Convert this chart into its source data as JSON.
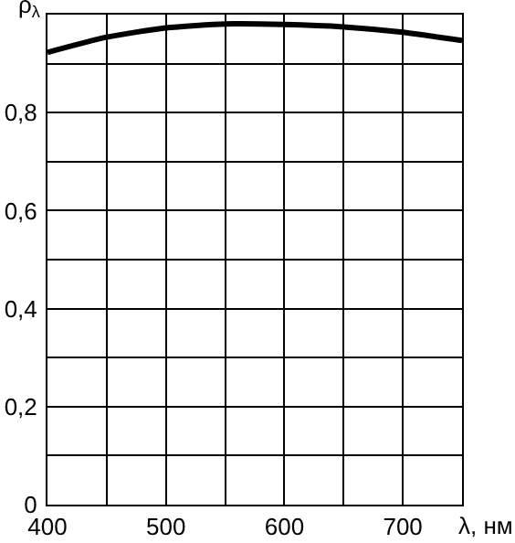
{
  "chart_data": {
    "type": "line",
    "xlabel": "λ, нм",
    "ylabel": "ρ$_{λ}$",
    "x": [
      400,
      450,
      500,
      550,
      600,
      650,
      700,
      750
    ],
    "series": [
      {
        "color": "#000000",
        "values": [
          0.923,
          0.954,
          0.973,
          0.981,
          0.98,
          0.975,
          0.964,
          0.947
        ]
      }
    ],
    "xlim": [
      400,
      750
    ],
    "xticks": [
      400,
      {
        "value": 450,
        "label": null
      },
      500,
      {
        "value": 550,
        "label": null
      },
      600,
      {
        "value": 650,
        "label": null
      },
      700,
      {
        "value": 750,
        "label": null
      }
    ],
    "ylim": [
      0,
      1
    ],
    "yticks": [
      0,
      {
        "value": 0.1,
        "label": null
      },
      {
        "value": 0.2,
        "label": "0,2"
      },
      {
        "value": 0.3,
        "label": null
      },
      {
        "value": 0.4,
        "label": "0,4"
      },
      {
        "value": 0.5,
        "label": null
      },
      {
        "value": 0.6,
        "label": "0,6"
      },
      {
        "value": 0.7,
        "label": null
      },
      {
        "value": 0.8,
        "label": "0,8"
      },
      {
        "value": 0.9,
        "label": null
      },
      {
        "value": 1,
        "label": null
      }
    ],
    "grid": true,
    "marker": "none",
    "line_style": "solid"
  }
}
